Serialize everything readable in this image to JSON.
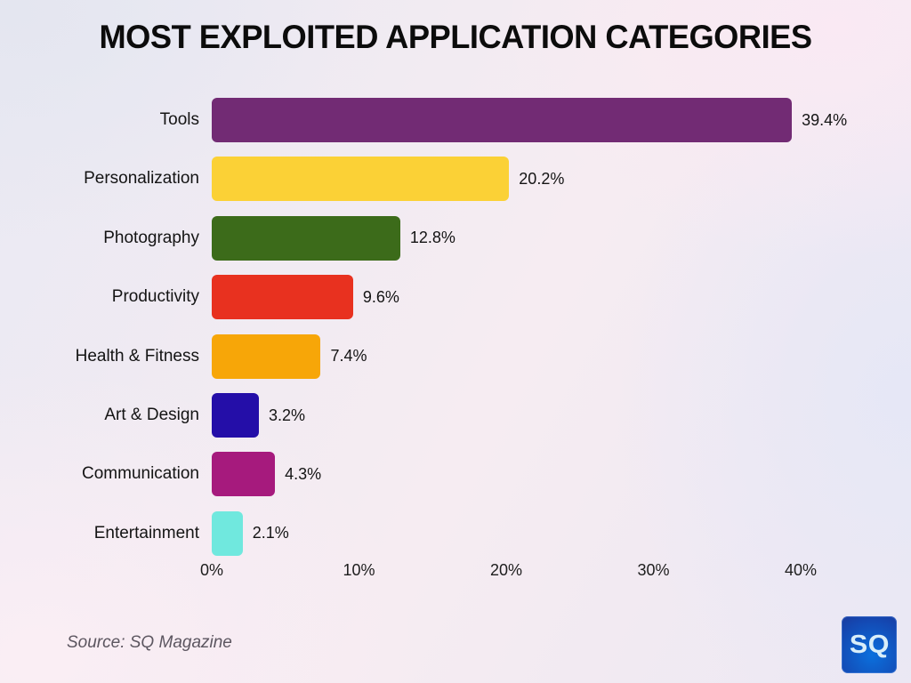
{
  "title": "MOST EXPLOITED APPLICATION CATEGORIES",
  "source_caption": "Source: SQ Magazine",
  "logo": {
    "text": "SQ",
    "background_color": "#0d5fd0",
    "text_color": "#d9eef9"
  },
  "background_colors": {
    "lavender": "#e6e8f3",
    "pink": "#f9ecf3"
  },
  "chart_data": {
    "type": "bar",
    "orientation": "horizontal",
    "title": "MOST EXPLOITED APPLICATION CATEGORIES",
    "categories": [
      "Tools",
      "Personalization",
      "Photography",
      "Productivity",
      "Health & Fitness",
      "Art & Design",
      "Communication",
      "Entertainment"
    ],
    "values": [
      39.4,
      20.2,
      12.8,
      9.6,
      7.4,
      3.2,
      4.3,
      2.1
    ],
    "value_labels": [
      "39.4%",
      "20.2%",
      "12.8%",
      "9.6%",
      "7.4%",
      "3.2%",
      "4.3%",
      "2.1%"
    ],
    "bar_colors": [
      "#722b74",
      "#fbd136",
      "#3c6b1a",
      "#e8311f",
      "#f7a608",
      "#240ea8",
      "#a61a7d",
      "#70e8de"
    ],
    "x_ticks": [
      {
        "value": 0,
        "label": "0%"
      },
      {
        "value": 10,
        "label": "10%"
      },
      {
        "value": 20,
        "label": "20%"
      },
      {
        "value": 30,
        "label": "30%"
      },
      {
        "value": 40,
        "label": "40%"
      }
    ],
    "xlim": [
      0,
      40
    ],
    "xlabel": "",
    "ylabel": "",
    "grid": false,
    "legend": false,
    "source": "Source: SQ Magazine"
  }
}
